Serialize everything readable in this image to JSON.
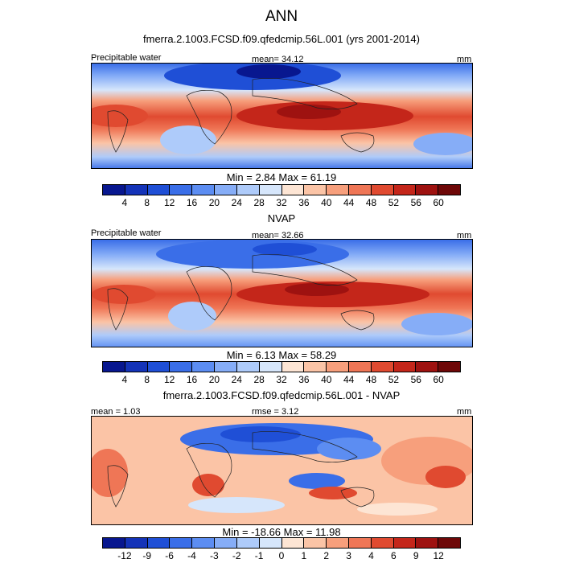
{
  "main_title": "ANN",
  "panels": [
    {
      "title": "fmerra.2.1003.FCSD.f09.qfedcmip.56L.001 (yrs 2001-2014)",
      "left_label": "Precipitable water",
      "center_label": "mean=  34.12",
      "right_label": "mm",
      "minmax": "Min =   2.84 Max =  61.19"
    },
    {
      "title": "NVAP",
      "left_label": "Precipitable water",
      "center_label": "mean=  32.66",
      "right_label": "mm",
      "minmax": "Min =   6.13 Max =  58.29"
    },
    {
      "title": "fmerra.2.1003.FCSD.f09.qfedcmip.56L.001 - NVAP",
      "left_label": "mean =   1.03",
      "center_label": "rmse =   3.12",
      "right_label": "mm",
      "minmax": "Min = -18.66 Max =  11.98"
    }
  ],
  "colorbar_abs": {
    "ticks": [
      "4",
      "8",
      "12",
      "16",
      "20",
      "24",
      "28",
      "32",
      "36",
      "40",
      "44",
      "48",
      "52",
      "56",
      "60"
    ],
    "colors": [
      "#08178f",
      "#1433b8",
      "#1f4fd6",
      "#3a6ee8",
      "#5c8df2",
      "#86adf7",
      "#aecbfa",
      "#d6e6fb",
      "#fde5d4",
      "#fbc4a6",
      "#f79f7c",
      "#ef7656",
      "#e04a30",
      "#c4261a",
      "#9e1210",
      "#6e0808"
    ]
  },
  "colorbar_diff": {
    "ticks": [
      "-12",
      "-9",
      "-6",
      "-4",
      "-3",
      "-2",
      "-1",
      "0",
      "1",
      "2",
      "3",
      "4",
      "6",
      "9",
      "12"
    ],
    "colors": [
      "#08178f",
      "#1433b8",
      "#1f4fd6",
      "#3a6ee8",
      "#5c8df2",
      "#86adf7",
      "#aecbfa",
      "#d6e6fb",
      "#fde5d4",
      "#fbc4a6",
      "#f79f7c",
      "#ef7656",
      "#e04a30",
      "#c4261a",
      "#9e1210",
      "#6e0808"
    ]
  }
}
